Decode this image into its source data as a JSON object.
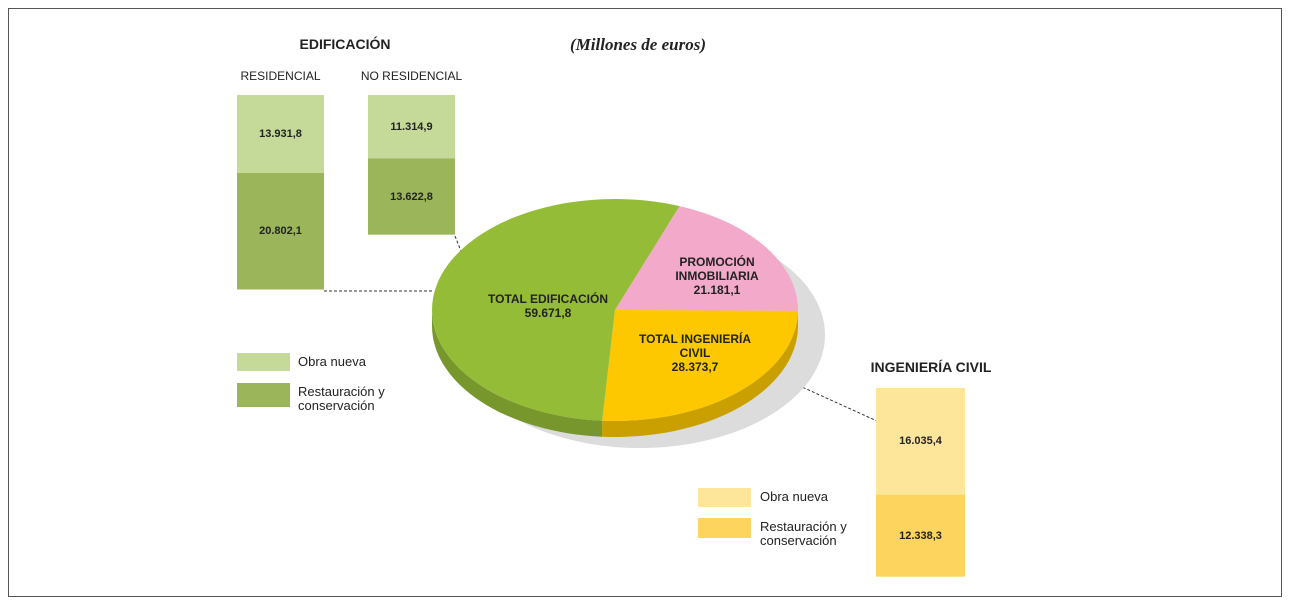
{
  "chart_data": [
    {
      "type": "pie",
      "title": "(Millones de euros)",
      "categories": [
        "TOTAL EDIFICACIÓN",
        "PROMOCIÓN INMOBILIARIA",
        "TOTAL INGENIERÍA CIVIL"
      ],
      "values": [
        59671.8,
        21181.1,
        28373.7
      ],
      "value_labels": [
        "59.671,8",
        "21.181,1",
        "28.373,7"
      ],
      "colors": [
        "#95bc37",
        "#f3a9c9",
        "#fdc800"
      ]
    },
    {
      "type": "bar",
      "title": "EDIFICACIÓN",
      "categories": [
        "RESIDENCIAL",
        "NO RESIDENCIAL"
      ],
      "series": [
        {
          "name": "Obra nueva",
          "color": "#c5d999",
          "values": [
            13931.8,
            11314.9
          ],
          "value_labels": [
            "13.931,8",
            "11.314,9"
          ]
        },
        {
          "name": "Restauración y conservación",
          "color": "#9bb55a",
          "values": [
            20802.1,
            13622.8
          ],
          "value_labels": [
            "20.802,1",
            "13.622,8"
          ]
        }
      ]
    },
    {
      "type": "bar",
      "title": "INGENIERÍA CIVIL",
      "categories": [
        null
      ],
      "series": [
        {
          "name": "Obra nueva",
          "color": "#fde69a",
          "values": [
            16035.4
          ],
          "value_labels": [
            "16.035,4"
          ]
        },
        {
          "name": "Restauración y conservación",
          "color": "#fdd45e",
          "values": [
            12338.3
          ],
          "value_labels": [
            "12.338,3"
          ]
        }
      ]
    }
  ]
}
